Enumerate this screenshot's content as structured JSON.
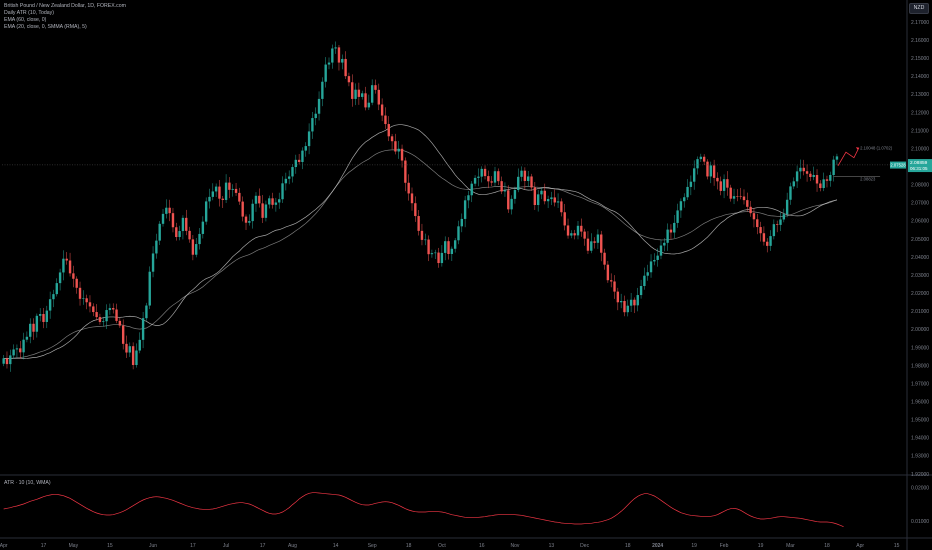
{
  "header": {
    "symbol_title": "British Pound / New Zealand Dollar, 1D, FOREX.com",
    "indicators": [
      "Daily ATR (10, Today)",
      "EMA (60, close, 0)",
      "EMA (20, close, 0, SMMA (RMA), 5)"
    ],
    "currency": "NZD"
  },
  "atr_panel": {
    "label": "ATR · 10 (10, WMA)"
  },
  "price_labels": {
    "current_bid": "2.07528",
    "current_price": "2.08859",
    "countdown": "06:31:05",
    "target_price": "2.10048 (1.0702)",
    "level_price": "2.08823"
  },
  "colors": {
    "up": "#26a69a",
    "down": "#ef5350",
    "background": "#000000",
    "ema_fast": "#cfcfcf",
    "ema_slow": "#9a9a9a",
    "atr_line": "#f23645",
    "axis_text": "#7e828d"
  },
  "chart_data": [
    {
      "type": "candlestick",
      "title": "British Pound / New Zealand Dollar, 1D, FOREX.com",
      "ylim": [
        1.92,
        2.18
      ],
      "y_ticks": [
        "2.17000",
        "2.16000",
        "2.15000",
        "2.14000",
        "2.13000",
        "2.12000",
        "2.11000",
        "2.10000",
        "2.09000",
        "2.08000",
        "2.07000",
        "2.06000",
        "2.05000",
        "2.04000",
        "2.03000",
        "2.02000",
        "2.01000",
        "2.00000",
        "1.99000",
        "1.98000",
        "1.97000",
        "1.96000",
        "1.95000",
        "1.94000",
        "1.93000",
        "1.92000"
      ],
      "x_ticks": [
        "Apr",
        "17",
        "May",
        "15",
        "Jun",
        "17",
        "Jul",
        "17",
        "Aug",
        "14",
        "Sep",
        "18",
        "Oct",
        "16",
        "Nov",
        "13",
        "Dec",
        "18",
        "2024",
        "19",
        "Feb",
        "19",
        "Mar",
        "18",
        "Apr",
        "15"
      ],
      "x_tick_index": [
        0,
        12,
        21,
        32,
        45,
        57,
        67,
        78,
        87,
        100,
        111,
        122,
        132,
        144,
        154,
        165,
        175,
        188,
        197,
        208,
        217,
        228,
        237,
        248,
        258,
        269
      ],
      "close": [
        1.984,
        1.9808,
        1.9856,
        1.9889,
        1.9895,
        1.9873,
        1.9943,
        1.9959,
        2.0031,
        1.9987,
        2.0075,
        2.0085,
        2.0041,
        2.0104,
        2.0167,
        2.0195,
        2.0256,
        2.0315,
        2.0391,
        2.0381,
        2.031,
        2.028,
        2.023,
        2.0169,
        2.0172,
        2.015,
        2.0127,
        2.0096,
        2.0068,
        2.0041,
        2.0045,
        2.0107,
        2.0118,
        2.011,
        2.0047,
        2.0021,
        1.992,
        1.9872,
        1.9907,
        1.9803,
        1.9883,
        1.9942,
        2.0062,
        2.0132,
        2.0319,
        2.042,
        2.0491,
        2.0584,
        2.0639,
        2.0673,
        2.0643,
        2.0565,
        2.0511,
        2.0544,
        2.0617,
        2.0545,
        2.0498,
        2.0413,
        2.0472,
        2.0528,
        2.0596,
        2.0708,
        2.0733,
        2.0763,
        2.079,
        2.0723,
        2.0716,
        2.0812,
        2.0772,
        2.0777,
        2.0755,
        2.0707,
        2.0624,
        2.059,
        2.0599,
        2.0695,
        2.0739,
        2.0697,
        2.0617,
        2.0691,
        2.0725,
        2.0689,
        2.0702,
        2.072,
        2.0808,
        2.0833,
        2.0846,
        2.0898,
        2.0938,
        2.0926,
        2.0989,
        2.1014,
        2.1095,
        2.1169,
        2.1193,
        2.1275,
        2.137,
        2.1465,
        2.1476,
        2.1554,
        2.156,
        2.1476,
        2.1496,
        2.1401,
        2.1367,
        2.1275,
        2.1326,
        2.1286,
        2.1306,
        2.1228,
        2.1254,
        2.1351,
        2.1325,
        2.1244,
        2.1183,
        2.1136,
        2.1068,
        2.1041,
        2.0984,
        2.0999,
        2.0934,
        2.0811,
        2.0752,
        2.0698,
        2.0627,
        2.0545,
        2.0495,
        2.0497,
        2.0416,
        2.0422,
        2.0425,
        2.0367,
        2.0423,
        2.0488,
        2.0417,
        2.0446,
        2.0493,
        2.057,
        2.0611,
        2.0714,
        2.0742,
        2.0806,
        2.0838,
        2.0845,
        2.0888,
        2.0848,
        2.0819,
        2.0812,
        2.0875,
        2.082,
        2.0763,
        2.0769,
        2.0664,
        2.0722,
        2.0771,
        2.0844,
        2.0878,
        2.0821,
        2.0846,
        2.0785,
        2.0688,
        2.0747,
        2.0767,
        2.0709,
        2.0721,
        2.073,
        2.0702,
        2.0708,
        2.0648,
        2.0575,
        2.0519,
        2.0532,
        2.052,
        2.0573,
        2.0541,
        2.0502,
        2.0435,
        2.0487,
        2.0479,
        2.0525,
        2.0424,
        2.0358,
        2.0272,
        2.0265,
        2.0209,
        2.015,
        2.0157,
        2.0095,
        2.0131,
        2.0164,
        2.0133,
        2.019,
        2.024,
        2.0297,
        2.0316,
        2.0376,
        2.0384,
        2.0408,
        2.0464,
        2.0479,
        2.0552,
        2.0536,
        2.0589,
        2.0658,
        2.0709,
        2.0731,
        2.0788,
        2.0817,
        2.0891,
        2.0942,
        2.0955,
        2.0928,
        2.0846,
        2.0907,
        2.0838,
        2.0819,
        2.0766,
        2.0831,
        2.0784,
        2.0723,
        2.0737,
        2.0736,
        2.0735,
        2.0715,
        2.0678,
        2.0643,
        2.0609,
        2.0566,
        2.0532,
        2.0485,
        2.0462,
        2.0516,
        2.0582,
        2.0578,
        2.0608,
        2.0637,
        2.0717,
        2.0791,
        2.0819,
        2.0874,
        2.0894,
        2.0875,
        2.0861,
        2.0843,
        2.0854,
        2.0807,
        2.0782,
        2.083,
        2.0822,
        2.0854,
        2.0939,
        2.0957
      ],
      "series": [
        {
          "name": "EMA (60, close, 0)"
        },
        {
          "name": "EMA (20, close, 0, SMMA (RMA), 5)"
        }
      ]
    },
    {
      "type": "line",
      "title": "ATR · 10 (10, WMA)",
      "ylim": [
        0.0055,
        0.0235
      ],
      "y_ticks": [
        "0.02000",
        "0.01000"
      ],
      "values": [
        0.0136,
        0.0138,
        0.014,
        0.0143,
        0.0145,
        0.0148,
        0.0151,
        0.0155,
        0.0159,
        0.0162,
        0.0165,
        0.0169,
        0.0173,
        0.0176,
        0.0178,
        0.018,
        0.018,
        0.0178,
        0.0176,
        0.0172,
        0.0168,
        0.0162,
        0.0156,
        0.015,
        0.0144,
        0.0138,
        0.0133,
        0.0128,
        0.0124,
        0.0121,
        0.0119,
        0.0118,
        0.0118,
        0.0119,
        0.0122,
        0.0125,
        0.0129,
        0.0134,
        0.014,
        0.0146,
        0.0152,
        0.0158,
        0.0163,
        0.0167,
        0.017,
        0.0172,
        0.0173,
        0.0172,
        0.017,
        0.0168,
        0.0165,
        0.0162,
        0.0158,
        0.0154,
        0.015,
        0.0146,
        0.0143,
        0.014,
        0.0138,
        0.0136,
        0.0135,
        0.0135,
        0.0135,
        0.0136,
        0.0138,
        0.0141,
        0.0144,
        0.0147,
        0.015,
        0.0152,
        0.0154,
        0.0155,
        0.0155,
        0.0153,
        0.0151,
        0.0147,
        0.0142,
        0.0137,
        0.0132,
        0.0127,
        0.0123,
        0.0121,
        0.0121,
        0.0123,
        0.0127,
        0.0133,
        0.014,
        0.0149,
        0.0157,
        0.0166,
        0.0173,
        0.0179,
        0.0183,
        0.0185,
        0.0185,
        0.0184,
        0.0183,
        0.0182,
        0.0181,
        0.018,
        0.0179,
        0.0178,
        0.0175,
        0.0171,
        0.0166,
        0.0161,
        0.0156,
        0.0152,
        0.0149,
        0.0148,
        0.0148,
        0.015,
        0.0153,
        0.0155,
        0.0157,
        0.0158,
        0.0157,
        0.0155,
        0.0151,
        0.0147,
        0.0142,
        0.0137,
        0.0133,
        0.013,
        0.0128,
        0.0127,
        0.0127,
        0.0127,
        0.0128,
        0.0129,
        0.0129,
        0.0128,
        0.0127,
        0.0125,
        0.0122,
        0.0119,
        0.0117,
        0.0115,
        0.0113,
        0.0111,
        0.011,
        0.011,
        0.011,
        0.0111,
        0.0112,
        0.0113,
        0.0115,
        0.0116,
        0.0118,
        0.0119,
        0.012,
        0.012,
        0.012,
        0.012,
        0.0119,
        0.0118,
        0.0117,
        0.0115,
        0.0113,
        0.0111,
        0.0109,
        0.0107,
        0.0105,
        0.0103,
        0.0101,
        0.0099,
        0.0097,
        0.0096,
        0.0094,
        0.0093,
        0.0092,
        0.0092,
        0.0091,
        0.0091,
        0.0091,
        0.0092,
        0.0092,
        0.0093,
        0.0095,
        0.0096,
        0.0098,
        0.0101,
        0.0104,
        0.0108,
        0.0114,
        0.0121,
        0.0129,
        0.0138,
        0.0148,
        0.0158,
        0.0167,
        0.0174,
        0.0179,
        0.0182,
        0.0182,
        0.0179,
        0.0175,
        0.0169,
        0.0162,
        0.0155,
        0.0148,
        0.0141,
        0.0135,
        0.013,
        0.0125,
        0.0122,
        0.0119,
        0.0117,
        0.0116,
        0.0115,
        0.0114,
        0.0114,
        0.0114,
        0.0114,
        0.0116,
        0.0119,
        0.0124,
        0.0129,
        0.0134,
        0.0137,
        0.0138,
        0.0136,
        0.0132,
        0.0126,
        0.012,
        0.0115,
        0.0111,
        0.0108,
        0.0106,
        0.0106,
        0.0107,
        0.0108,
        0.011,
        0.0112,
        0.0113,
        0.0113,
        0.0112,
        0.0111,
        0.011,
        0.0109,
        0.0108,
        0.0106,
        0.0104,
        0.0102,
        0.01,
        0.0098,
        0.0097,
        0.0097,
        0.0097,
        0.0096,
        0.0094,
        0.0091,
        0.0087,
        0.0083
      ]
    }
  ]
}
